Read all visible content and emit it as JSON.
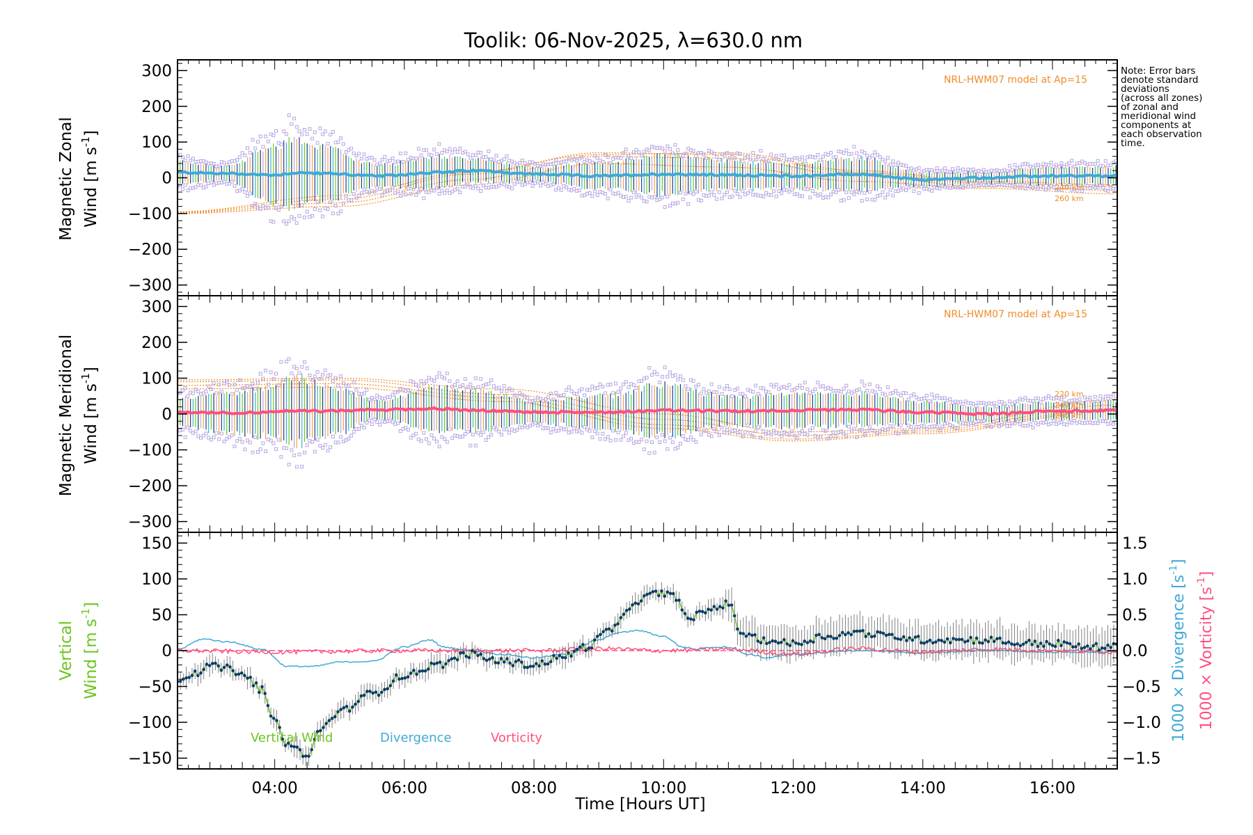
{
  "title": "Toolik: 06-Nov-2025, λ=630.0 nm",
  "note_lines": [
    "Note: Error bars",
    "denote standard",
    "deviations",
    "(across all zones)",
    "of zonal and",
    "meridional wind",
    "components at",
    "each observation",
    "time."
  ],
  "colors": {
    "axis": "#000000",
    "model": "#f08c28",
    "zonal": "#3fa9d6",
    "meridional": "#ff4f7d",
    "scatter": "#b7a6e3",
    "vertical": "#6cc51f",
    "divergence": "#3fa9d6",
    "vorticity": "#ff4f7d",
    "vertical_point": "#0d3b66",
    "errorbar": "#808080"
  },
  "chart_data": [
    {
      "type": "scatter",
      "name": "zonal",
      "ylabel_line1": "Magnetic Zonal",
      "ylabel_line2": "Wind [m s",
      "ylabel_sup": "-1",
      "ylabel_end": "]",
      "ylim": [
        -330,
        330
      ],
      "yticks": [
        -300,
        -200,
        -100,
        0,
        100,
        200,
        300
      ],
      "ytick_labels": [
        "−300",
        "−200",
        "−100",
        "0",
        "100",
        "200",
        "300"
      ],
      "xlim": [
        2.5,
        17.0
      ],
      "model_label": "NRL-HWM07 model at Ap=15",
      "model_curve_labels": [
        "240 km",
        "260 km"
      ],
      "anchor_hours": [
        2.5,
        3.25,
        4.0,
        4.3,
        4.8,
        5.6,
        6.5,
        7.1,
        8.0,
        9.0,
        10.0,
        11.0,
        12.0,
        13.0,
        14.0,
        15.0,
        16.0,
        17.0
      ],
      "mean_values": [
        15,
        12,
        8,
        14,
        12,
        5,
        15,
        20,
        10,
        5,
        10,
        8,
        5,
        10,
        -5,
        0,
        5,
        5
      ],
      "spread_values": [
        30,
        20,
        80,
        95,
        70,
        30,
        45,
        35,
        20,
        35,
        55,
        40,
        35,
        45,
        20,
        15,
        25,
        25
      ],
      "model_curves": [
        {
          "anchor_hours": [
            2.5,
            5,
            7,
            9,
            11,
            13,
            15,
            17
          ],
          "values": [
            -100,
            -80,
            -20,
            40,
            30,
            -10,
            -30,
            -45
          ]
        },
        {
          "anchor_hours": [
            2.5,
            5,
            7,
            9,
            11,
            13,
            15,
            17
          ],
          "values": [
            -98,
            -70,
            -5,
            60,
            55,
            5,
            -25,
            -35
          ]
        },
        {
          "anchor_hours": [
            2.5,
            5,
            7,
            9,
            11,
            13,
            15,
            17
          ],
          "values": [
            -96,
            -60,
            10,
            70,
            65,
            15,
            -15,
            -25
          ]
        },
        {
          "anchor_hours": [
            2.5,
            5,
            7,
            9,
            11,
            13,
            15,
            17
          ],
          "values": [
            -95,
            -50,
            15,
            65,
            70,
            20,
            -10,
            -20
          ]
        }
      ]
    },
    {
      "type": "scatter",
      "name": "meridional",
      "ylabel_line1": "Magnetic Meridional",
      "ylabel_line2": "Wind [m s",
      "ylabel_sup": "-1",
      "ylabel_end": "]",
      "ylim": [
        -330,
        330
      ],
      "yticks": [
        -300,
        -200,
        -100,
        0,
        100,
        200,
        300
      ],
      "ytick_labels": [
        "−300",
        "−200",
        "−100",
        "0",
        "100",
        "200",
        "300"
      ],
      "xlim": [
        2.5,
        17.0
      ],
      "model_label": "NRL-HWM07 model at Ap=15",
      "model_curve_labels": [
        "220 km",
        "240 km",
        "260 km"
      ],
      "anchor_hours": [
        2.5,
        3.25,
        4.0,
        4.3,
        4.8,
        5.6,
        6.5,
        7.1,
        8.0,
        9.0,
        10.0,
        11.0,
        12.0,
        13.0,
        14.0,
        15.0,
        16.0,
        17.0
      ],
      "mean_values": [
        5,
        3,
        5,
        10,
        8,
        12,
        15,
        10,
        5,
        5,
        10,
        8,
        10,
        12,
        5,
        0,
        8,
        10
      ],
      "spread_values": [
        40,
        55,
        70,
        95,
        70,
        25,
        60,
        55,
        30,
        45,
        70,
        40,
        45,
        45,
        30,
        20,
        25,
        25
      ],
      "model_curves": [
        {
          "anchor_hours": [
            2.5,
            5,
            7.5,
            10,
            12,
            14,
            17
          ],
          "values": [
            95,
            100,
            70,
            0,
            -50,
            -40,
            40
          ]
        },
        {
          "anchor_hours": [
            2.5,
            5,
            7.5,
            10,
            12,
            14,
            17
          ],
          "values": [
            90,
            95,
            55,
            -15,
            -60,
            -45,
            25
          ]
        },
        {
          "anchor_hours": [
            2.5,
            5,
            7.5,
            10,
            12,
            14,
            17
          ],
          "values": [
            80,
            85,
            45,
            -30,
            -70,
            -50,
            15
          ]
        },
        {
          "anchor_hours": [
            2.5,
            5,
            7.5,
            10,
            12,
            14,
            17
          ],
          "values": [
            70,
            75,
            35,
            -40,
            -75,
            -55,
            10
          ]
        }
      ]
    },
    {
      "type": "line",
      "name": "vertical",
      "ylabel_line1": "Vertical",
      "ylabel_line2": "Wind [m s",
      "ylabel_sup": "-1",
      "ylabel_end": "]",
      "ylim": [
        -165,
        165
      ],
      "yticks": [
        -150,
        -100,
        -50,
        0,
        50,
        100,
        150
      ],
      "ytick_labels": [
        "−150",
        "−100",
        "−50",
        "0",
        "50",
        "100",
        "150"
      ],
      "y2lim": [
        -1.65,
        1.65
      ],
      "y2ticks": [
        -1.5,
        -1.0,
        -0.5,
        0.0,
        0.5,
        1.0,
        1.5
      ],
      "y2tick_labels": [
        "−1.5",
        "−1.0",
        "−0.5",
        "0.0",
        "0.5",
        "1.0",
        "1.5"
      ],
      "y2label_div": "1000 × Divergence [s",
      "y2label_vort": "1000 × Vorticity [s",
      "y2label_sup": "-1",
      "y2label_end": "]",
      "xlim": [
        2.5,
        17.0
      ],
      "xticks": [
        4,
        6,
        8,
        10,
        12,
        14,
        16
      ],
      "xtick_labels": [
        "04:00",
        "06:00",
        "08:00",
        "10:00",
        "12:00",
        "14:00",
        "16:00"
      ],
      "xlabel": "Time [Hours UT]",
      "legend": [
        "Vertical Wind",
        "Divergence",
        "Vorticity"
      ],
      "vertical_wind": {
        "anchor_hours": [
          2.5,
          2.8,
          3.0,
          3.3,
          3.6,
          3.8,
          4.0,
          4.2,
          4.4,
          4.5,
          4.7,
          5.0,
          5.5,
          6.0,
          6.5,
          7.0,
          7.5,
          8.0,
          8.4,
          8.8,
          9.2,
          9.6,
          9.9,
          10.2,
          10.4,
          10.6,
          11.0,
          11.2,
          11.5,
          12.0,
          12.5,
          13.0,
          13.5,
          14.0,
          14.5,
          15.0,
          15.5,
          16.0,
          16.5,
          17.0
        ],
        "values": [
          -40,
          -30,
          -22,
          -25,
          -40,
          -55,
          -100,
          -130,
          -140,
          -150,
          -110,
          -85,
          -60,
          -35,
          -20,
          -5,
          -15,
          -20,
          -10,
          5,
          30,
          70,
          80,
          75,
          40,
          55,
          65,
          25,
          15,
          10,
          20,
          25,
          20,
          15,
          15,
          15,
          10,
          10,
          5,
          5
        ]
      },
      "divergence": {
        "anchor_hours": [
          2.5,
          2.9,
          3.3,
          3.8,
          4.2,
          4.6,
          5.0,
          5.5,
          6.0,
          6.4,
          6.6,
          7.0,
          7.5,
          8.0,
          8.5,
          9.0,
          9.3,
          9.6,
          10.0,
          10.3,
          10.5,
          10.8,
          11.0,
          11.3,
          11.6,
          12.0,
          13.0,
          14.0,
          15.0,
          16.0,
          17.0
        ],
        "values": [
          0.02,
          0.16,
          0.12,
          0.02,
          -0.22,
          -0.22,
          -0.16,
          -0.15,
          0.05,
          0.15,
          0.05,
          0.0,
          -0.05,
          -0.1,
          -0.05,
          0.15,
          0.25,
          0.28,
          0.2,
          0.05,
          0.02,
          0.05,
          0.05,
          -0.05,
          -0.1,
          -0.05,
          0.0,
          -0.03,
          0.0,
          -0.02,
          -0.02
        ]
      },
      "vorticity": {
        "anchor_hours": [
          2.5,
          4.0,
          6.0,
          8.0,
          9.0,
          10.0,
          11.0,
          12.0,
          13.0,
          14.0,
          15.0,
          16.0,
          17.0
        ],
        "values": [
          0.0,
          -0.02,
          0.0,
          0.0,
          0.03,
          0.0,
          0.02,
          -0.05,
          0.03,
          -0.02,
          0.02,
          0.0,
          -0.02
        ]
      }
    }
  ]
}
